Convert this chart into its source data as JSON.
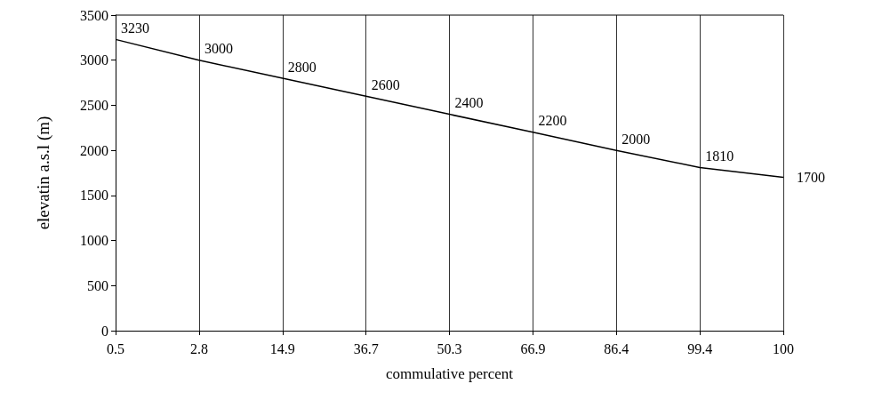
{
  "chart_data": {
    "type": "line",
    "xlabel": "commulative percent",
    "ylabel": "elevatin a.s.l (m)",
    "categories": [
      "0.5",
      "2.8",
      "14.9",
      "36.7",
      "50.3",
      "66.9",
      "86.4",
      "99.4",
      "100"
    ],
    "series": [
      {
        "color": "#000000",
        "values": [
          3230,
          3000,
          2800,
          2600,
          2400,
          2200,
          2000,
          1810,
          1700
        ]
      }
    ],
    "ylim": [
      0,
      3500
    ],
    "yticks": [
      0,
      500,
      1000,
      1500,
      2000,
      2500,
      3000,
      3500
    ],
    "grid": "x",
    "legend": false,
    "marker": "none",
    "line_style": "solid",
    "data_labels": true
  }
}
